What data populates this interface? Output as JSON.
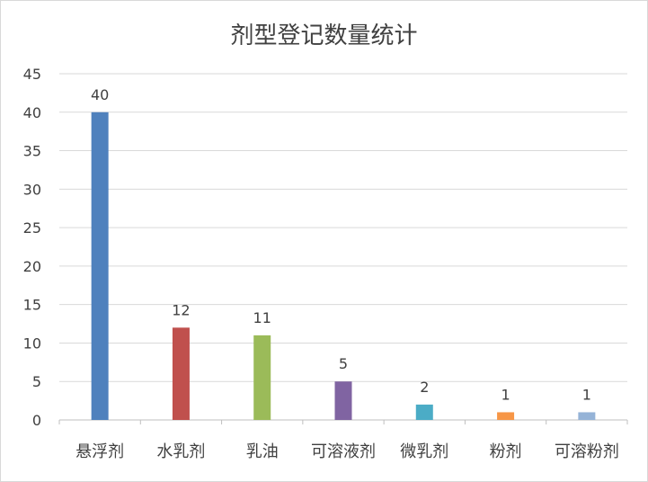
{
  "chart_data": {
    "type": "bar",
    "title": "剂型登记数量统计",
    "categories": [
      "悬浮剂",
      "水乳剂",
      "乳油",
      "可溶液剂",
      "微乳剂",
      "粉剂",
      "可溶粉剂"
    ],
    "values": [
      40,
      12,
      11,
      5,
      2,
      1,
      1
    ],
    "colors": [
      "#4F81BD",
      "#C0504D",
      "#9BBB59",
      "#8064A2",
      "#4BACC6",
      "#F79646",
      "#95B3D7"
    ],
    "ylim": [
      0,
      45
    ],
    "yticks": [
      0,
      5,
      10,
      15,
      20,
      25,
      30,
      35,
      40,
      45
    ],
    "grid": true,
    "data_labels": true,
    "legend": "none"
  }
}
